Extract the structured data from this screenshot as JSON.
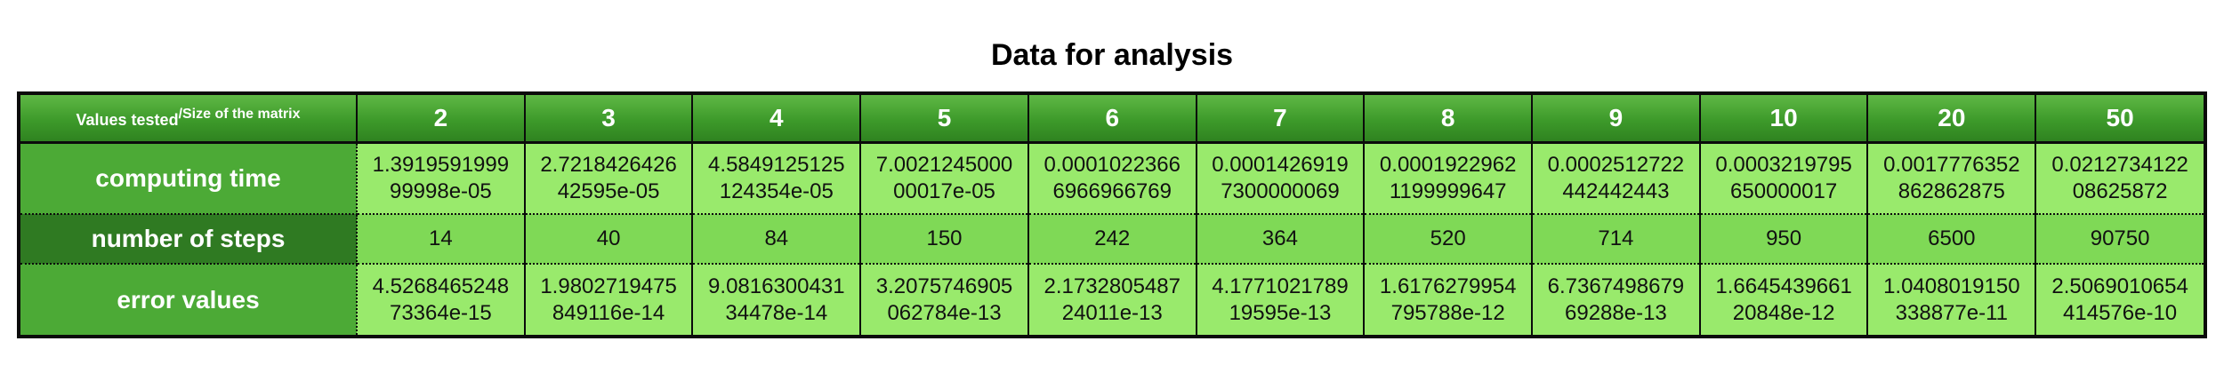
{
  "chart_data": {
    "type": "table",
    "title": "Data for analysis",
    "corner_label": {
      "main": "Values tested",
      "sup": "/Size of the matrix"
    },
    "columns": [
      "2",
      "3",
      "4",
      "5",
      "6",
      "7",
      "8",
      "9",
      "10",
      "20",
      "50"
    ],
    "rows": [
      {
        "label": "computing time",
        "values": [
          [
            "1.3919591999",
            "99998e-05"
          ],
          [
            "2.7218426426",
            "42595e-05"
          ],
          [
            "4.5849125125",
            "124354e-05"
          ],
          [
            "7.0021245000",
            "00017e-05"
          ],
          [
            "0.0001022366",
            "6966966769"
          ],
          [
            "0.0001426919",
            "7300000069"
          ],
          [
            "0.0001922962",
            "1199999647"
          ],
          [
            "0.0002512722",
            "442442443"
          ],
          [
            "0.0003219795",
            "650000017"
          ],
          [
            "0.0017776352",
            "862862875"
          ],
          [
            "0.0212734122",
            "08625872"
          ]
        ]
      },
      {
        "label": "number of steps",
        "values": [
          [
            "14"
          ],
          [
            "40"
          ],
          [
            "84"
          ],
          [
            "150"
          ],
          [
            "242"
          ],
          [
            "364"
          ],
          [
            "520"
          ],
          [
            "714"
          ],
          [
            "950"
          ],
          [
            "6500"
          ],
          [
            "90750"
          ]
        ]
      },
      {
        "label": "error values",
        "values": [
          [
            "4.5268465248",
            "73364e-15"
          ],
          [
            "1.9802719475",
            "849116e-14"
          ],
          [
            "9.0816300431",
            "34478e-14"
          ],
          [
            "3.2075746905",
            "062784e-13"
          ],
          [
            "2.1732805487",
            "24011e-13"
          ],
          [
            "4.1771021789",
            "19595e-13"
          ],
          [
            "1.6176279954",
            "795788e-12"
          ],
          [
            "6.7367498679",
            "69288e-13"
          ],
          [
            "1.6645439661",
            "20848e-12"
          ],
          [
            "1.0408019150",
            "338877e-11"
          ],
          [
            "2.5069010654",
            "414576e-10"
          ]
        ]
      }
    ]
  }
}
